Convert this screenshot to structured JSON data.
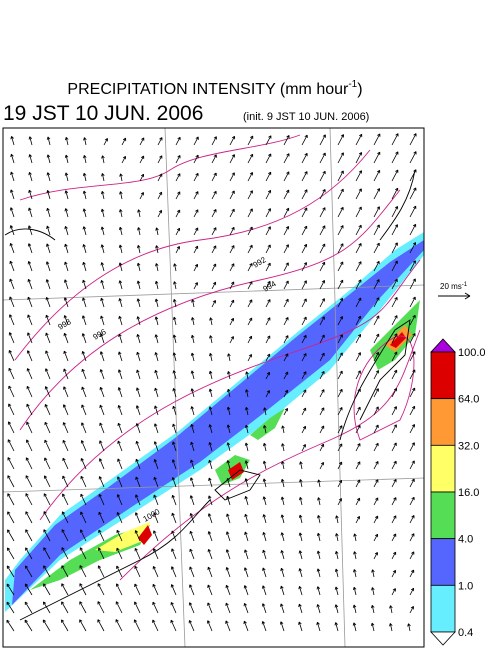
{
  "header": {
    "title": "PRECIPITATION INTENSITY (mm hour",
    "title_sup": "-1",
    "title_end": ")",
    "valid_time": "19 JST 10 JUN. 2006",
    "init_time": "(init. 9 JST 10 JUN. 2006)"
  },
  "wind_scale": {
    "label": "20 ms",
    "label_sup": "-1"
  },
  "isobar_labels": [
    "992",
    "994",
    "996",
    "998",
    "1000"
  ],
  "legend": {
    "labels": [
      "100.0",
      "64.0",
      "32.0",
      "16.0",
      "4.0",
      "1.0",
      "0.4"
    ],
    "colors": [
      "#dd0000",
      "#ff9933",
      "#ffff66",
      "#55dd55",
      "#5566ff",
      "#66eeff"
    ],
    "over_color": "#aa00dd",
    "under_color": "#ffffff"
  }
}
